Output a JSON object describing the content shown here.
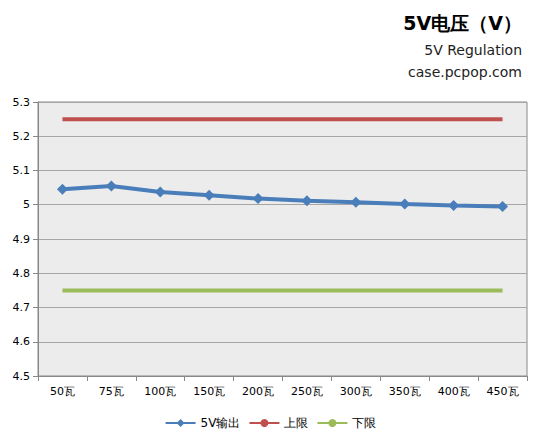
{
  "chart_data": {
    "type": "line",
    "title": "5V电压（V）",
    "subtitle": "5V Regulation",
    "annotations": [
      "case.pcpop.com"
    ],
    "categories": [
      "50瓦",
      "75瓦",
      "100瓦",
      "150瓦",
      "200瓦",
      "250瓦",
      "300瓦",
      "350瓦",
      "400瓦",
      "450瓦"
    ],
    "series": [
      {
        "name": "5V输出",
        "color": "#4a7ebb",
        "marker": "diamond",
        "line_style": "solid",
        "values": [
          5.045,
          5.055,
          5.037,
          5.028,
          5.018,
          5.012,
          5.007,
          5.002,
          4.998,
          4.995
        ]
      },
      {
        "name": "上限",
        "color": "#c0504d",
        "marker": "none",
        "line_style": "solid",
        "values": [
          5.25,
          5.25,
          5.25,
          5.25,
          5.25,
          5.25,
          5.25,
          5.25,
          5.25,
          5.25
        ]
      },
      {
        "name": "下限",
        "color": "#9bbb59",
        "marker": "none",
        "line_style": "solid",
        "values": [
          4.75,
          4.75,
          4.75,
          4.75,
          4.75,
          4.75,
          4.75,
          4.75,
          4.75,
          4.75
        ]
      }
    ],
    "ylim": [
      4.5,
      5.3
    ],
    "yticks": [
      4.5,
      4.6,
      4.7,
      4.8,
      4.9,
      5,
      5.1,
      5.2,
      5.3
    ],
    "grid": true,
    "legend": "bottom"
  }
}
